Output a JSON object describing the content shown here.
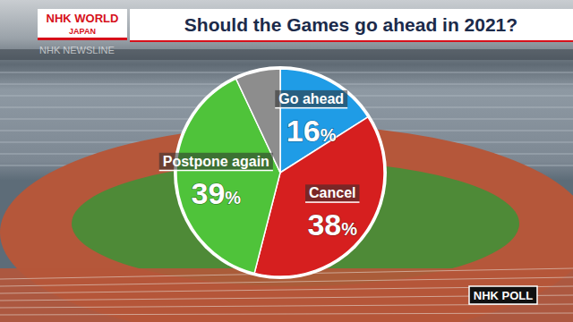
{
  "chart_data": {
    "type": "pie",
    "title": "Should the Games go ahead in 2021?",
    "categories": [
      "Go ahead",
      "Cancel",
      "Postpone again",
      null
    ],
    "values": [
      16,
      38,
      39,
      7
    ],
    "value_labels": [
      "16%",
      "38%",
      "39%",
      null
    ],
    "colors": [
      "#1f9ce6",
      "#d61f1f",
      "#4fc33a",
      "#8d8d8d"
    ],
    "data_labels": true,
    "annotations": [
      "NHK WORLD",
      "JAPAN",
      "NHK NEWSLINE",
      "NHK POLL"
    ]
  }
}
